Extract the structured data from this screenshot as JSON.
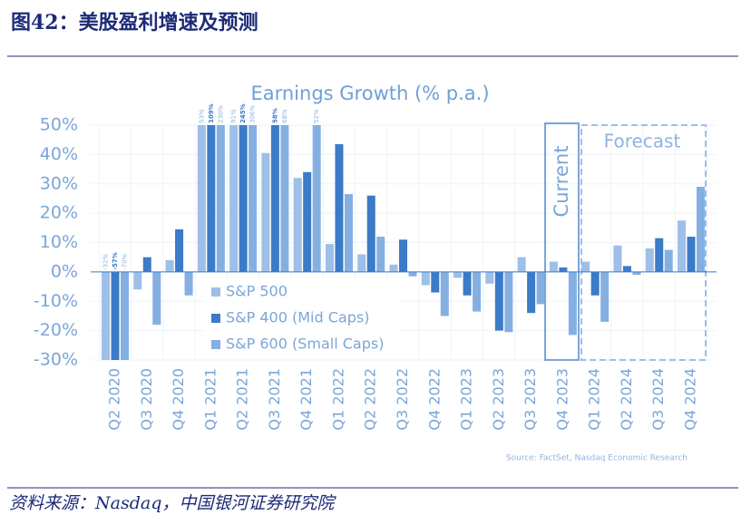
{
  "header": {
    "title": "图42：美股盈利增速及预测"
  },
  "chart_data": {
    "type": "bar",
    "title": "Earnings Growth (% p.a.)",
    "categories": [
      "Q2 2020",
      "Q3 2020",
      "Q4 2020",
      "Q1 2021",
      "Q2 2021",
      "Q3 2021",
      "Q4 2021",
      "Q1 2022",
      "Q2 2022",
      "Q3 2022",
      "Q4 2022",
      "Q1 2023",
      "Q2 2023",
      "Q3 2023",
      "Q4 2023",
      "Q1 2024",
      "Q2 2024",
      "Q3 2024",
      "Q4 2024"
    ],
    "series": [
      {
        "name": "S&P 500",
        "color": "#9dbfe8",
        "values": [
          -32,
          -6,
          4,
          53,
          91,
          40.5,
          32,
          9.5,
          6,
          2.5,
          -4.5,
          -2,
          -4,
          5,
          3.5,
          3.5,
          9,
          8,
          17.5
        ],
        "value_labels": [
          "-32%",
          null,
          null,
          "53%",
          "91%",
          null,
          null,
          null,
          null,
          null,
          null,
          null,
          null,
          null,
          null,
          null,
          null,
          null,
          null
        ]
      },
      {
        "name": "S&P 400 (Mid Caps)",
        "color": "#3b7bc8",
        "values": [
          -57,
          5,
          14.5,
          109,
          245,
          58,
          34,
          43.5,
          26,
          11,
          -7,
          -8,
          -20,
          -14,
          1.5,
          -8,
          2,
          11.5,
          12
        ],
        "value_labels": [
          "-57%",
          null,
          null,
          "109%",
          "245%",
          "58%",
          null,
          null,
          null,
          null,
          null,
          null,
          null,
          null,
          null,
          null,
          null,
          null,
          null
        ]
      },
      {
        "name": "S&P 600 (Small Caps)",
        "color": "#84afe2",
        "values": [
          -70,
          -18,
          -8,
          230,
          306,
          68,
          52,
          26.5,
          12,
          -1.5,
          -15,
          -13.5,
          -20.5,
          -11,
          -21.5,
          -17,
          -1,
          7.5,
          29
        ],
        "value_labels": [
          "-70%",
          null,
          null,
          "230%",
          "306%",
          "68%",
          "52%",
          null,
          null,
          null,
          null,
          null,
          null,
          null,
          null,
          null,
          null,
          null,
          null
        ]
      }
    ],
    "ylim": [
      -30,
      50
    ],
    "yticks": [
      {
        "value": -30,
        "label": "-30%"
      },
      {
        "value": -20,
        "label": "-20%"
      },
      {
        "value": -10,
        "label": "-10%"
      },
      {
        "value": 0,
        "label": "0%"
      },
      {
        "value": 10,
        "label": "10%"
      },
      {
        "value": 20,
        "label": "20%"
      },
      {
        "value": 30,
        "label": "30%"
      },
      {
        "value": 40,
        "label": "40%"
      },
      {
        "value": 50,
        "label": "50%"
      }
    ],
    "grid": true,
    "legend": "center",
    "annotations": [
      "Current",
      "Forecast"
    ],
    "source": "Source: FactSet, Nasdaq Economic Research"
  },
  "footer": {
    "source": "资料来源：Nasdaq，中国银河证券研究院"
  }
}
